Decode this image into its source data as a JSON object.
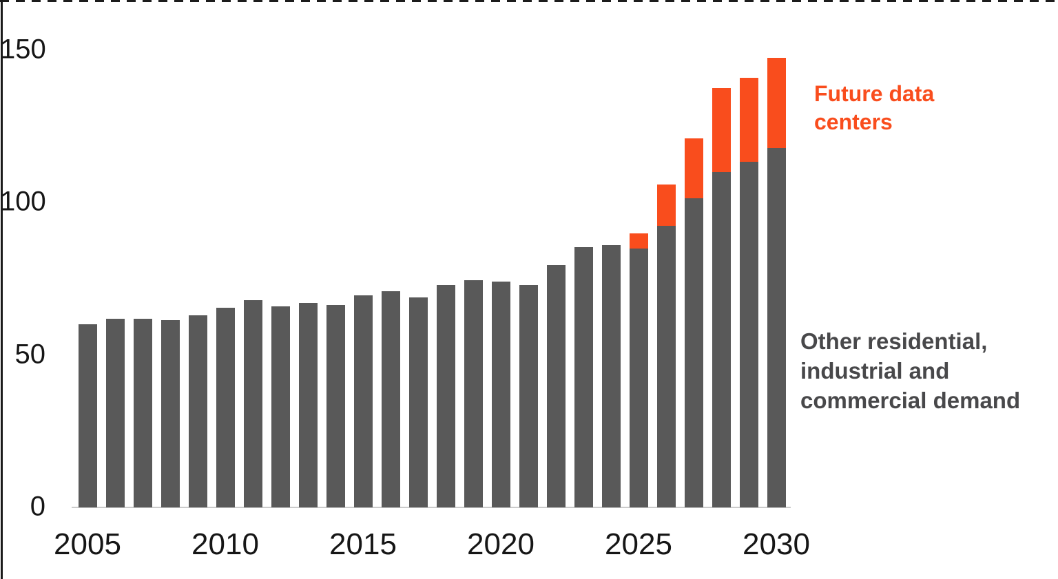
{
  "figure": {
    "background_color": "#ffffff",
    "axis_line_color": "#1a1a1a",
    "baseline_color": "#cbcbcb",
    "tick_label_color": "#161616"
  },
  "legend": {
    "future": {
      "lines": [
        "Future data",
        "centers"
      ],
      "color": "#F94D1D"
    },
    "other": {
      "lines": [
        "Other residential,",
        "industrial and",
        "commercial demand"
      ],
      "color": "#48484a"
    }
  },
  "chart_data": {
    "type": "bar",
    "stacked": true,
    "title": "",
    "xlabel": "",
    "ylabel": "",
    "grid": false,
    "legend_position": "right-of-bars",
    "ylim": [
      0,
      150
    ],
    "yticks": [
      0,
      50,
      100,
      150
    ],
    "xticks": [
      2005,
      2010,
      2015,
      2020,
      2025,
      2030
    ],
    "categories": [
      2005,
      2006,
      2007,
      2008,
      2009,
      2010,
      2011,
      2012,
      2013,
      2014,
      2015,
      2016,
      2017,
      2018,
      2019,
      2020,
      2021,
      2022,
      2023,
      2024,
      2025,
      2026,
      2027,
      2028,
      2029,
      2030
    ],
    "series": [
      {
        "name": "Other residential, industrial and commercial demand",
        "color": "#595959",
        "values": [
          60,
          62,
          62,
          61.5,
          63,
          65.5,
          68,
          66,
          67,
          66.5,
          69.5,
          71,
          69,
          73,
          74.5,
          74,
          73,
          79.5,
          85.5,
          86,
          85,
          92.5,
          101.5,
          110,
          113.5,
          118
        ]
      },
      {
        "name": "Future data centers",
        "color": "#F94D1D",
        "values": [
          0,
          0,
          0,
          0,
          0,
          0,
          0,
          0,
          0,
          0,
          0,
          0,
          0,
          0,
          0,
          0,
          0,
          0,
          0,
          0,
          5,
          13.5,
          19.5,
          27.5,
          27.5,
          29.5
        ]
      }
    ],
    "stacked_totals_2025_2030": [
      90,
      106,
      121,
      137.5,
      141,
      147.5
    ]
  }
}
